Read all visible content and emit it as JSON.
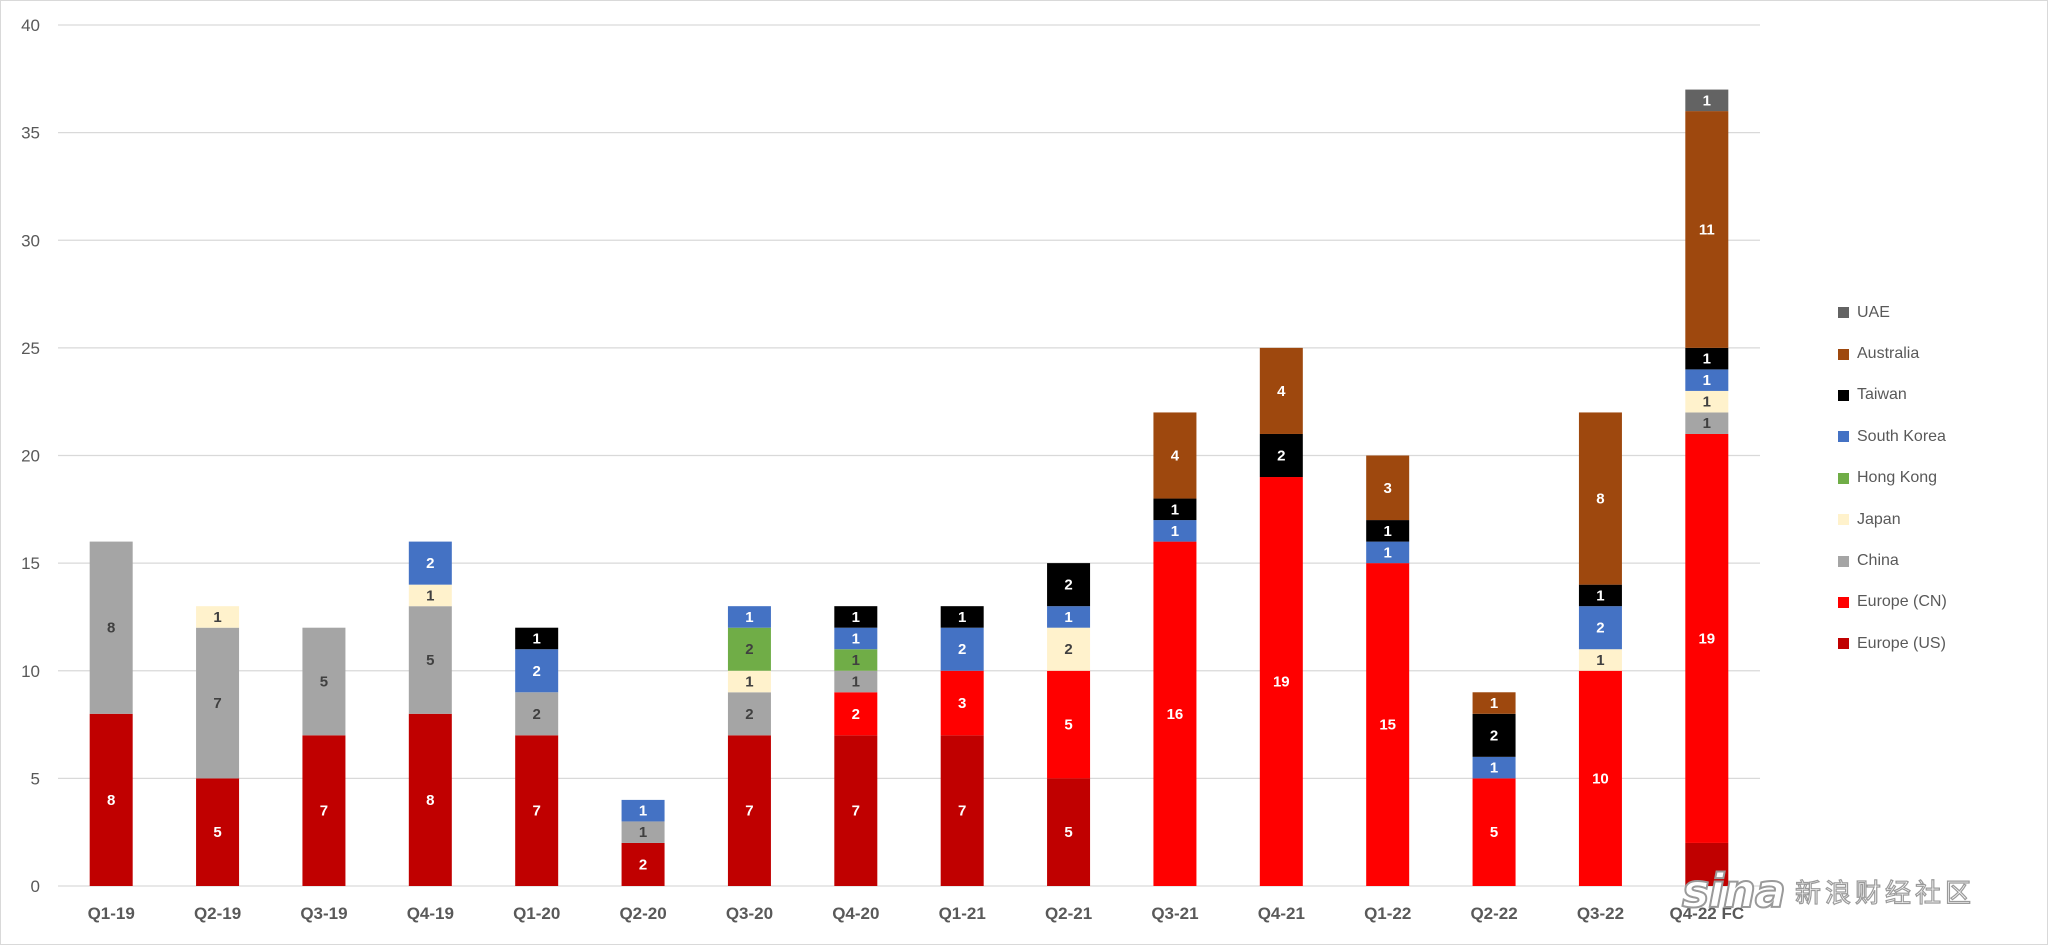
{
  "chart_data": {
    "type": "bar",
    "stacked": true,
    "categories": [
      "Q1-19",
      "Q2-19",
      "Q3-19",
      "Q4-19",
      "Q1-20",
      "Q2-20",
      "Q3-20",
      "Q4-20",
      "Q1-21",
      "Q2-21",
      "Q3-21",
      "Q4-21",
      "Q1-22",
      "Q2-22",
      "Q3-22",
      "Q4-22 FC"
    ],
    "ylim": [
      0,
      40
    ],
    "yticks": [
      0,
      5,
      10,
      15,
      20,
      25,
      30,
      35,
      40
    ],
    "grid": true,
    "legend_position": "right",
    "series": [
      {
        "name": "Europe (US)",
        "color": "#c00000",
        "values": [
          8,
          5,
          7,
          8,
          7,
          2,
          7,
          7,
          7,
          5,
          0,
          0,
          0,
          0,
          0,
          2
        ],
        "labels": [
          8,
          5,
          7,
          8,
          7,
          2,
          7,
          7,
          7,
          5,
          null,
          null,
          null,
          null,
          null,
          null
        ]
      },
      {
        "name": "Europe (CN)",
        "color": "#ff0000",
        "values": [
          0,
          0,
          0,
          0,
          0,
          0,
          0,
          2,
          3,
          5,
          16,
          19,
          15,
          5,
          10,
          19
        ],
        "labels": [
          null,
          null,
          null,
          null,
          null,
          null,
          null,
          2,
          3,
          5,
          16,
          19,
          15,
          5,
          10,
          19
        ]
      },
      {
        "name": "China",
        "color": "#a5a5a5",
        "values": [
          8,
          7,
          5,
          5,
          2,
          1,
          2,
          1,
          0,
          0,
          0,
          0,
          0,
          0,
          0,
          1
        ],
        "labels": [
          8,
          7,
          5,
          5,
          2,
          1,
          2,
          1,
          null,
          null,
          null,
          null,
          null,
          null,
          null,
          1
        ]
      },
      {
        "name": "Japan",
        "color": "#fff2cc",
        "values": [
          0,
          1,
          0,
          1,
          0,
          0,
          1,
          0,
          0,
          2,
          0,
          0,
          0,
          0,
          1,
          1
        ],
        "labels": [
          null,
          1,
          null,
          1,
          null,
          null,
          1,
          null,
          null,
          2,
          null,
          null,
          null,
          null,
          1,
          1
        ]
      },
      {
        "name": "Hong Kong",
        "color": "#70ad47",
        "values": [
          0,
          0,
          0,
          0,
          0,
          0,
          2,
          1,
          0,
          0,
          0,
          0,
          0,
          0,
          0,
          0
        ],
        "labels": [
          null,
          null,
          null,
          null,
          null,
          null,
          2,
          1,
          null,
          null,
          null,
          null,
          null,
          null,
          null,
          null
        ]
      },
      {
        "name": "South Korea",
        "color": "#4472c4",
        "values": [
          0,
          0,
          0,
          2,
          2,
          1,
          1,
          1,
          2,
          1,
          1,
          0,
          1,
          1,
          2,
          1
        ],
        "labels": [
          null,
          null,
          null,
          2,
          2,
          1,
          1,
          1,
          2,
          1,
          1,
          null,
          1,
          1,
          2,
          1
        ]
      },
      {
        "name": "Taiwan",
        "color": "#000000",
        "values": [
          0,
          0,
          0,
          0,
          1,
          0,
          0,
          1,
          1,
          2,
          1,
          2,
          1,
          2,
          1,
          1
        ],
        "labels": [
          null,
          null,
          null,
          null,
          1,
          null,
          null,
          1,
          1,
          2,
          1,
          2,
          1,
          2,
          1,
          1
        ]
      },
      {
        "name": "Australia",
        "color": "#9e480e",
        "values": [
          0,
          0,
          0,
          0,
          0,
          0,
          0,
          0,
          0,
          0,
          4,
          4,
          3,
          1,
          8,
          11
        ],
        "labels": [
          null,
          null,
          null,
          null,
          null,
          null,
          null,
          null,
          null,
          null,
          4,
          4,
          3,
          1,
          8,
          11
        ]
      },
      {
        "name": "UAE",
        "color": "#636363",
        "values": [
          0,
          0,
          0,
          0,
          0,
          0,
          0,
          0,
          0,
          0,
          0,
          0,
          0,
          0,
          0,
          1
        ],
        "labels": [
          null,
          null,
          null,
          null,
          null,
          null,
          null,
          null,
          null,
          null,
          null,
          null,
          null,
          null,
          null,
          1
        ]
      }
    ],
    "label_colors": {
      "Europe (US)": "#ffffff",
      "Europe (CN)": "#ffffff",
      "China": "#404040",
      "Japan": "#404040",
      "Hong Kong": "#404040",
      "South Korea": "#ffffff",
      "Taiwan": "#ffffff",
      "Australia": "#ffffff",
      "UAE": "#ffffff"
    }
  },
  "legend": {
    "items": [
      {
        "label": "UAE",
        "color": "#636363"
      },
      {
        "label": "Australia",
        "color": "#9e480e"
      },
      {
        "label": "Taiwan",
        "color": "#000000"
      },
      {
        "label": "South Korea",
        "color": "#4472c4"
      },
      {
        "label": "Hong Kong",
        "color": "#70ad47"
      },
      {
        "label": "Japan",
        "color": "#fff2cc"
      },
      {
        "label": "China",
        "color": "#a5a5a5"
      },
      {
        "label": "Europe (CN)",
        "color": "#ff0000"
      },
      {
        "label": "Europe (US)",
        "color": "#c00000"
      }
    ]
  },
  "watermark": {
    "logo": "sina",
    "text": "新浪财经社区"
  }
}
